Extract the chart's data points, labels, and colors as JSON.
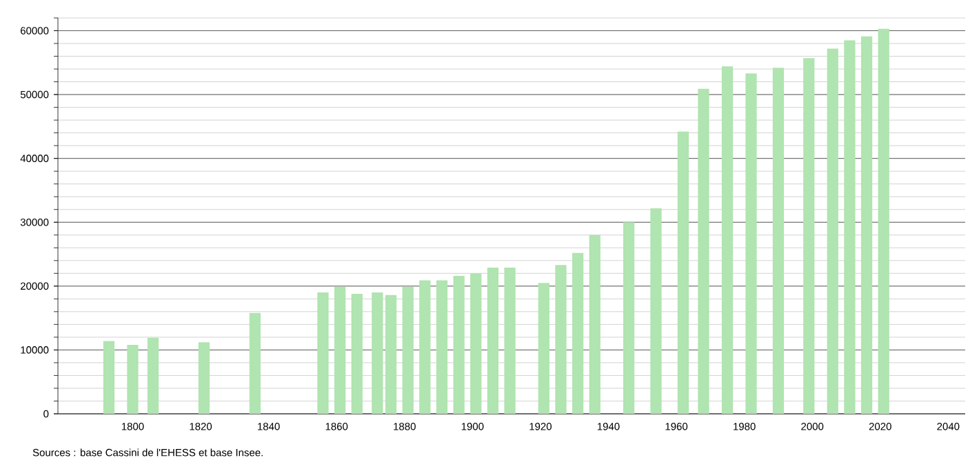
{
  "chart_data": {
    "type": "bar",
    "x": [
      1793,
      1800,
      1806,
      1821,
      1836,
      1856,
      1861,
      1866,
      1872,
      1876,
      1881,
      1886,
      1891,
      1896,
      1901,
      1906,
      1911,
      1921,
      1926,
      1931,
      1936,
      1946,
      1954,
      1962,
      1968,
      1975,
      1982,
      1990,
      1999,
      2006,
      2011,
      2016,
      2021
    ],
    "values": [
      11400,
      10800,
      11900,
      11200,
      15800,
      19000,
      19900,
      18800,
      19000,
      18600,
      19900,
      20900,
      20900,
      21600,
      22000,
      22900,
      22900,
      20500,
      23300,
      25200,
      28000,
      30000,
      32200,
      44200,
      50900,
      54400,
      53300,
      54200,
      55700,
      57200,
      58500,
      59100,
      60300
    ],
    "color": "#b0e4b0",
    "xlim": [
      1778,
      2045
    ],
    "xticks": [
      1800,
      1820,
      1840,
      1860,
      1880,
      1900,
      1920,
      1940,
      1960,
      1980,
      2000,
      2020,
      2040
    ],
    "ylim": [
      0,
      62000
    ],
    "yticks": [
      0,
      {
        "value": 2000,
        "label": null
      },
      {
        "value": 4000,
        "label": null
      },
      {
        "value": 6000,
        "label": null
      },
      {
        "value": 8000,
        "label": null
      },
      10000,
      {
        "value": 12000,
        "label": null
      },
      {
        "value": 14000,
        "label": null
      },
      {
        "value": 16000,
        "label": null
      },
      {
        "value": 18000,
        "label": null
      },
      20000,
      {
        "value": 22000,
        "label": null
      },
      {
        "value": 24000,
        "label": null
      },
      {
        "value": 26000,
        "label": null
      },
      {
        "value": 28000,
        "label": null
      },
      30000,
      {
        "value": 32000,
        "label": null
      },
      {
        "value": 34000,
        "label": null
      },
      {
        "value": 36000,
        "label": null
      },
      {
        "value": 38000,
        "label": null
      },
      40000,
      {
        "value": 42000,
        "label": null
      },
      {
        "value": 44000,
        "label": null
      },
      {
        "value": 46000,
        "label": null
      },
      {
        "value": 48000,
        "label": null
      },
      50000,
      {
        "value": 52000,
        "label": null
      },
      {
        "value": 54000,
        "label": null
      },
      {
        "value": 56000,
        "label": null
      },
      {
        "value": 58000,
        "label": null
      },
      60000,
      {
        "value": 62000,
        "label": null
      }
    ],
    "grid": "y",
    "annotations": [
      "Sources : base Cassini de l'EHESS et base Insee."
    ]
  }
}
